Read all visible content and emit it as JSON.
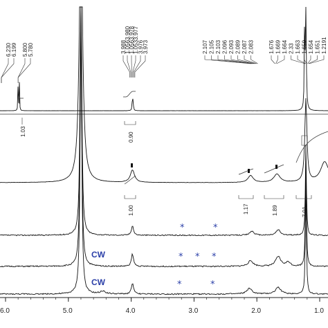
{
  "chart_data": {
    "type": "line",
    "title": "",
    "xlabel": "",
    "ylabel": "",
    "x_reversed": true,
    "xlim": [
      6.35,
      0.9
    ],
    "xticks": [
      6.0,
      5.0,
      4.0,
      3.0,
      2.0,
      1.0
    ],
    "xtick_labels": [
      "6.0",
      "5.0",
      "4.0",
      "3.0",
      "2.0",
      "1.0"
    ],
    "spectra_count": 5,
    "peak_labels": [
      {
        "group": "left",
        "labels": [
          "6.230",
          "6.199",
          "5.800",
          "5.780"
        ]
      },
      {
        "group": "mid",
        "labels": [
          "3.988",
          "1.0563.980",
          "1.0563.978",
          "1.0533.977",
          "3.976",
          "3.973"
        ]
      },
      {
        "group": "aliphatic",
        "labels": [
          "2.107",
          "2.105",
          "2.103",
          "2.096",
          "2.093",
          "2.089",
          "2.087",
          "2.083"
        ]
      },
      {
        "group": "methyl",
        "labels": [
          "1.676",
          "1.669",
          "1.664",
          "2.33",
          "1.663",
          "1.659",
          "1.654",
          "1.651",
          "1.2191"
        ]
      }
    ],
    "integrations": [
      "1.03",
      "0.90",
      "1.00",
      "1.17",
      "1.89",
      "7.01"
    ],
    "annotations": {
      "cw_labels": [
        "CW",
        "CW"
      ],
      "stars": [
        "*",
        "*",
        "*",
        "*",
        "*",
        "*",
        "*"
      ]
    },
    "peaks_ppm": [
      {
        "ppm": 6.23,
        "height": 0.02
      },
      {
        "ppm": 5.8,
        "height": 0.55
      },
      {
        "ppm": 4.8,
        "height": 1.0
      },
      {
        "ppm": 3.98,
        "height": 0.22
      },
      {
        "ppm": 2.1,
        "height": 0.12
      },
      {
        "ppm": 1.66,
        "height": 0.16
      },
      {
        "ppm": 1.22,
        "height": 0.95
      }
    ]
  }
}
